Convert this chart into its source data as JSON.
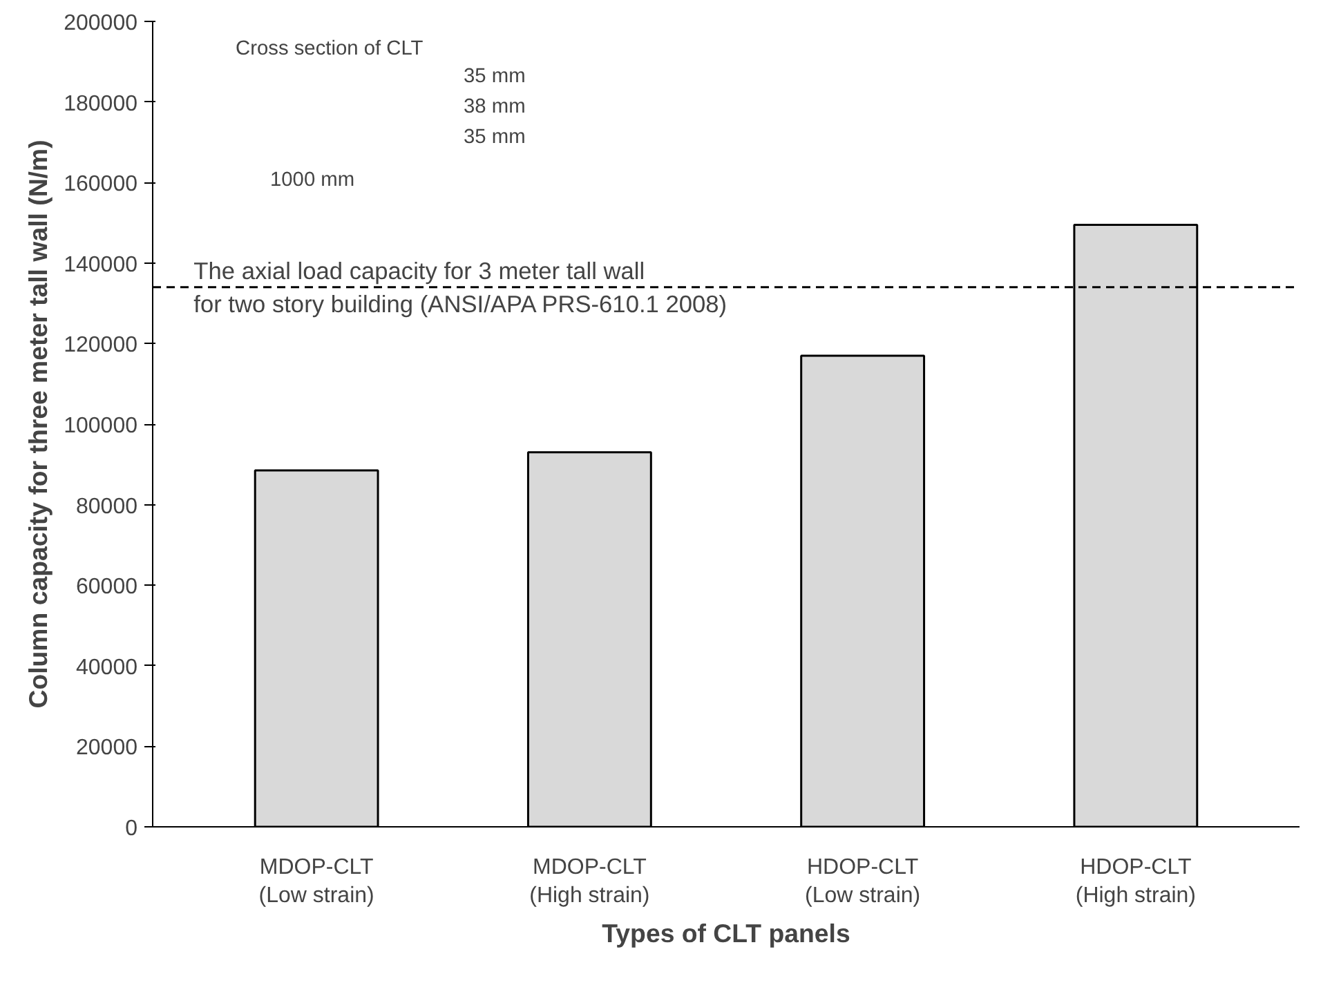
{
  "chart_data": {
    "type": "bar",
    "xlabel": "Types of CLT panels",
    "ylabel": "Column capacity for three meter tall wall (N/m)",
    "categories": [
      "MDOP-CLT\n(Low strain)",
      "MDOP-CLT\n(High strain)",
      "HDOP-CLT\n(Low strain)",
      "HDOP-CLT\n(High strain)"
    ],
    "values": [
      88500,
      93000,
      117000,
      149500
    ],
    "color": "#d9d9d9",
    "ylim": [
      0,
      200000
    ],
    "yticks": [
      0,
      20000,
      40000,
      60000,
      80000,
      100000,
      120000,
      140000,
      160000,
      180000,
      200000
    ],
    "grid": false,
    "ref_lines": [
      {
        "axis": "y",
        "value": 134000,
        "label": "The  axial load capacity for 3 meter tall wall\nfor two story building  (ANSI/APA PRS-610.1 2008)",
        "color": "#000000",
        "line_style": "dashed"
      }
    ],
    "annotations": [
      "Cross section of CLT",
      "35 mm",
      "38 mm",
      "35 mm",
      "1000 mm"
    ]
  }
}
